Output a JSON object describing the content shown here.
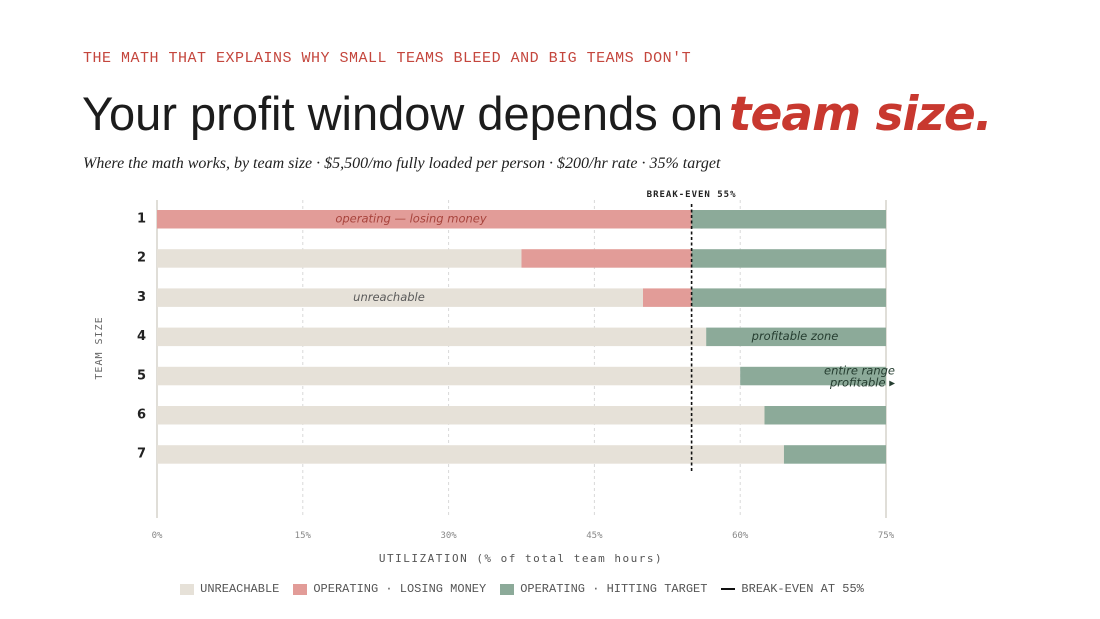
{
  "header": {
    "eyebrow": "THE MATH THAT EXPLAINS WHY SMALL TEAMS BLEED AND BIG TEAMS DON'T",
    "title_main": "Your profit window depends on",
    "title_accent": "team size.",
    "subtitle": "Where the math works, by team size · $5,500/mo fully loaded per person · $200/hr rate · 35% target"
  },
  "legend": {
    "unreachable": "UNREACHABLE",
    "losing": "OPERATING · LOSING MONEY",
    "target": "OPERATING · HITTING TARGET",
    "breakeven": "BREAK-EVEN AT 55%"
  },
  "colors": {
    "unreachable": "#e6e1d8",
    "losing": "#e29c98",
    "target": "#8caa99",
    "breakeven": "#111111",
    "accent": "#c8382f"
  },
  "chart_data": {
    "type": "bar",
    "orientation": "horizontal",
    "stacked": true,
    "categories": [
      "1",
      "2",
      "3",
      "4",
      "5",
      "6",
      "7"
    ],
    "series": [
      {
        "name": "UNREACHABLE",
        "values": [
          0,
          37.5,
          50,
          56.5,
          60,
          62.5,
          64.5
        ]
      },
      {
        "name": "OPERATING · LOSING MONEY",
        "values": [
          55,
          17.5,
          5,
          0,
          0,
          0,
          0
        ]
      },
      {
        "name": "OPERATING · HITTING TARGET",
        "values": [
          20,
          20,
          20,
          18.5,
          15,
          12.5,
          10.5
        ]
      }
    ],
    "xlabel": "UTILIZATION (% of total team hours)",
    "ylabel": "TEAM SIZE",
    "xlim": [
      0,
      75
    ],
    "xticks": [
      "0%",
      "15%",
      "30%",
      "45%",
      "60%",
      "75%"
    ],
    "grid": true,
    "breakeven": {
      "value": 55,
      "label": "BREAK-EVEN 55%"
    },
    "annotations": [
      {
        "row": "1",
        "text": "operating — losing money"
      },
      {
        "row": "3",
        "text": "unreachable"
      },
      {
        "row": "4",
        "text": "profitable zone"
      },
      {
        "row": "5",
        "text": "entire range",
        "text2": "profitable ▸"
      }
    ]
  }
}
